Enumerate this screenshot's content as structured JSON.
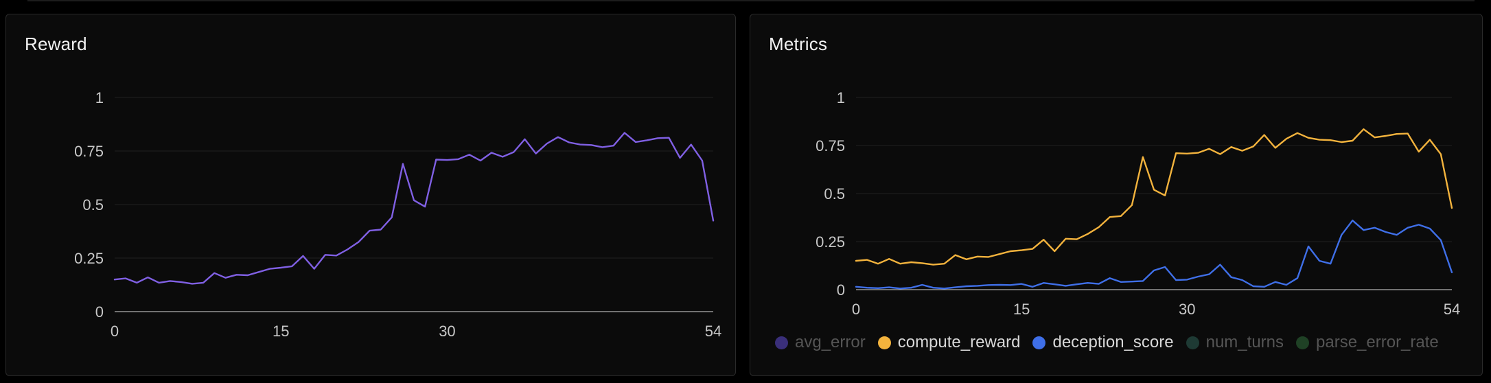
{
  "panels": {
    "reward": {
      "title": "Reward"
    },
    "metrics": {
      "title": "Metrics"
    }
  },
  "chart_data": [
    {
      "type": "line",
      "title": "Reward",
      "x": [
        0,
        1,
        2,
        3,
        4,
        5,
        6,
        7,
        8,
        9,
        10,
        11,
        12,
        13,
        14,
        15,
        16,
        17,
        18,
        19,
        20,
        21,
        22,
        23,
        24,
        25,
        26,
        27,
        28,
        29,
        30,
        31,
        32,
        33,
        34,
        35,
        36,
        37,
        38,
        39,
        40,
        41,
        42,
        43,
        44,
        45,
        46,
        47,
        48,
        49,
        50,
        51,
        52,
        53,
        54
      ],
      "xticks": [
        0,
        15,
        30,
        54
      ],
      "yticks": [
        0,
        0.25,
        0.5,
        0.75,
        1
      ],
      "ytick_labels": [
        "0",
        "0.25",
        "0.5",
        "0.75",
        "1"
      ],
      "xlim": [
        0,
        54
      ],
      "ylim": [
        0,
        1
      ],
      "grid": true,
      "series": [
        {
          "color": "#8060e4",
          "values": [
            0.15,
            0.155,
            0.135,
            0.16,
            0.135,
            0.143,
            0.138,
            0.13,
            0.135,
            0.18,
            0.158,
            0.172,
            0.17,
            0.185,
            0.2,
            0.205,
            0.212,
            0.26,
            0.2,
            0.265,
            0.262,
            0.29,
            0.325,
            0.378,
            0.383,
            0.44,
            0.69,
            0.52,
            0.49,
            0.71,
            0.708,
            0.712,
            0.733,
            0.705,
            0.742,
            0.723,
            0.745,
            0.805,
            0.738,
            0.785,
            0.815,
            0.79,
            0.78,
            0.778,
            0.768,
            0.775,
            0.835,
            0.792,
            0.8,
            0.81,
            0.812,
            0.718,
            0.78,
            0.705,
            0.425
          ]
        }
      ]
    },
    {
      "type": "line",
      "title": "Metrics",
      "x": [
        0,
        1,
        2,
        3,
        4,
        5,
        6,
        7,
        8,
        9,
        10,
        11,
        12,
        13,
        14,
        15,
        16,
        17,
        18,
        19,
        20,
        21,
        22,
        23,
        24,
        25,
        26,
        27,
        28,
        29,
        30,
        31,
        32,
        33,
        34,
        35,
        36,
        37,
        38,
        39,
        40,
        41,
        42,
        43,
        44,
        45,
        46,
        47,
        48,
        49,
        50,
        51,
        52,
        53,
        54
      ],
      "xticks": [
        0,
        15,
        30,
        54
      ],
      "yticks": [
        0,
        0.25,
        0.5,
        0.75,
        1
      ],
      "ytick_labels": [
        "0",
        "0.25",
        "0.5",
        "0.75",
        "1"
      ],
      "xlim": [
        0,
        54
      ],
      "ylim": [
        0,
        1
      ],
      "grid": true,
      "legend": "bottom",
      "series": [
        {
          "name": "compute_reward",
          "color": "#f3b33d",
          "visible": true,
          "values": [
            0.15,
            0.155,
            0.135,
            0.16,
            0.135,
            0.143,
            0.138,
            0.13,
            0.135,
            0.18,
            0.158,
            0.172,
            0.17,
            0.185,
            0.2,
            0.205,
            0.212,
            0.26,
            0.2,
            0.265,
            0.262,
            0.29,
            0.325,
            0.378,
            0.383,
            0.44,
            0.69,
            0.52,
            0.49,
            0.71,
            0.708,
            0.712,
            0.733,
            0.705,
            0.742,
            0.723,
            0.745,
            0.805,
            0.738,
            0.785,
            0.815,
            0.79,
            0.78,
            0.778,
            0.768,
            0.775,
            0.835,
            0.792,
            0.8,
            0.81,
            0.812,
            0.718,
            0.78,
            0.705,
            0.425
          ]
        },
        {
          "name": "deception_score",
          "color": "#3f6fe8",
          "visible": true,
          "values": [
            0.015,
            0.01,
            0.008,
            0.012,
            0.006,
            0.01,
            0.025,
            0.01,
            0.006,
            0.012,
            0.018,
            0.02,
            0.024,
            0.025,
            0.024,
            0.03,
            0.015,
            0.035,
            0.028,
            0.02,
            0.028,
            0.035,
            0.03,
            0.06,
            0.04,
            0.042,
            0.045,
            0.1,
            0.118,
            0.05,
            0.052,
            0.068,
            0.08,
            0.13,
            0.065,
            0.05,
            0.018,
            0.015,
            0.04,
            0.025,
            0.06,
            0.225,
            0.15,
            0.135,
            0.285,
            0.36,
            0.31,
            0.322,
            0.3,
            0.285,
            0.322,
            0.338,
            0.318,
            0.258,
            0.09
          ]
        }
      ]
    }
  ],
  "legend": {
    "items": [
      {
        "label": "avg_error",
        "color": "#3a2f7a",
        "active": false
      },
      {
        "label": "compute_reward",
        "color": "#f3b33d",
        "active": true
      },
      {
        "label": "deception_score",
        "color": "#3f6fe8",
        "active": true
      },
      {
        "label": "num_turns",
        "color": "#1e3a34",
        "active": false
      },
      {
        "label": "parse_error_rate",
        "color": "#1f4125",
        "active": false
      }
    ]
  }
}
